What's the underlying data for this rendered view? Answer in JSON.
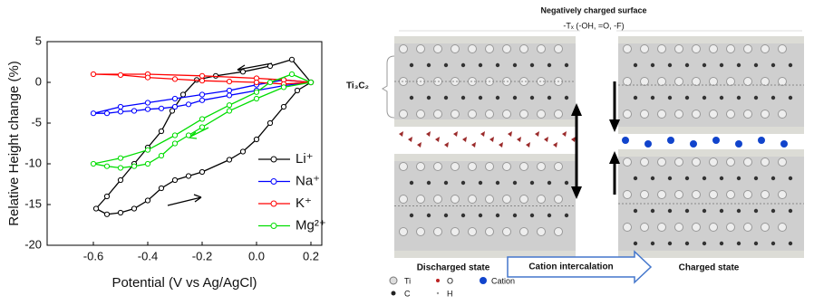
{
  "chart_data": {
    "type": "line",
    "xlabel": "Potential (V vs Ag/AgCl)",
    "ylabel": "Relative Height change (%)",
    "xlim": [
      -0.77,
      0.24
    ],
    "ylim": [
      -20,
      5
    ],
    "xticks": [
      -0.6,
      -0.4,
      -0.2,
      {
        "value": 0,
        "label": "0.0"
      },
      0.2
    ],
    "yticks": [
      5,
      0,
      -5,
      -10,
      -15,
      -20
    ],
    "legend": "right",
    "series": [
      {
        "name": "Li⁺",
        "color": "#000000",
        "x": [
          0.2,
          0.13,
          0.05,
          -0.05,
          -0.15,
          -0.22,
          -0.27,
          -0.31,
          -0.35,
          -0.4,
          -0.45,
          -0.5,
          -0.55,
          -0.59,
          -0.55,
          -0.5,
          -0.45,
          -0.4,
          -0.35,
          -0.3,
          -0.25,
          -0.2,
          -0.1,
          -0.05,
          0.0,
          0.05,
          0.1,
          0.15,
          0.2
        ],
        "values": [
          0,
          2.8,
          2.0,
          1.3,
          0.8,
          0.3,
          -1.5,
          -3.5,
          -6,
          -8,
          -10,
          -12,
          -14,
          -15.5,
          -16.2,
          -16,
          -15.5,
          -14.5,
          -13,
          -12,
          -11.5,
          -11,
          -9.5,
          -8.5,
          -7,
          -5,
          -3,
          -1,
          0
        ]
      },
      {
        "name": "Na⁺",
        "color": "#0000ff",
        "x": [
          0.2,
          0.1,
          0.0,
          -0.1,
          -0.2,
          -0.3,
          -0.4,
          -0.5,
          -0.6,
          -0.55,
          -0.5,
          -0.45,
          -0.4,
          -0.35,
          -0.3,
          -0.25,
          -0.2,
          -0.1,
          0.0,
          0.1,
          0.2
        ],
        "values": [
          0,
          0.3,
          -0.3,
          -1,
          -1.5,
          -2,
          -2.5,
          -3,
          -3.8,
          -3.8,
          -3.6,
          -3.5,
          -3.3,
          -3.2,
          -3,
          -2.7,
          -2.2,
          -1.6,
          -1,
          -0.4,
          0
        ]
      },
      {
        "name": "K⁺",
        "color": "#ff0000",
        "x": [
          0.2,
          0.1,
          0.0,
          -0.2,
          -0.4,
          -0.6,
          -0.5,
          -0.4,
          -0.3,
          -0.2,
          -0.1,
          0.0,
          0.1,
          0.2
        ],
        "values": [
          0,
          0.3,
          0.5,
          0.8,
          1.0,
          1.0,
          0.9,
          0.6,
          0.4,
          0.2,
          0.1,
          0.0,
          -0.2,
          0
        ]
      },
      {
        "name": "Mg²⁺",
        "color": "#00dd00",
        "x": [
          0.2,
          0.13,
          0.05,
          0.0,
          -0.1,
          -0.2,
          -0.3,
          -0.4,
          -0.5,
          -0.6,
          -0.55,
          -0.5,
          -0.45,
          -0.4,
          -0.35,
          -0.3,
          -0.25,
          -0.2,
          -0.1,
          0.0,
          0.1,
          0.2
        ],
        "values": [
          0,
          1.0,
          0.0,
          -1.2,
          -2.8,
          -4.5,
          -6.5,
          -8.3,
          -9.3,
          -10,
          -10.3,
          -10.5,
          -10.3,
          -10,
          -9,
          -7.5,
          -6.5,
          -5.5,
          -3.5,
          -2,
          -0.6,
          0
        ]
      }
    ]
  },
  "diagram": {
    "surface_label": "Negatively charged surface",
    "termination": "-Tₓ (-OH, =O, -F)",
    "layer_label": "Ti₃C₂",
    "left_state": "Discharged state",
    "arrow_label": "Cation intercalation",
    "right_state": "Charged state",
    "legend": [
      "Ti",
      "O",
      "Cation",
      "C",
      "H"
    ]
  }
}
